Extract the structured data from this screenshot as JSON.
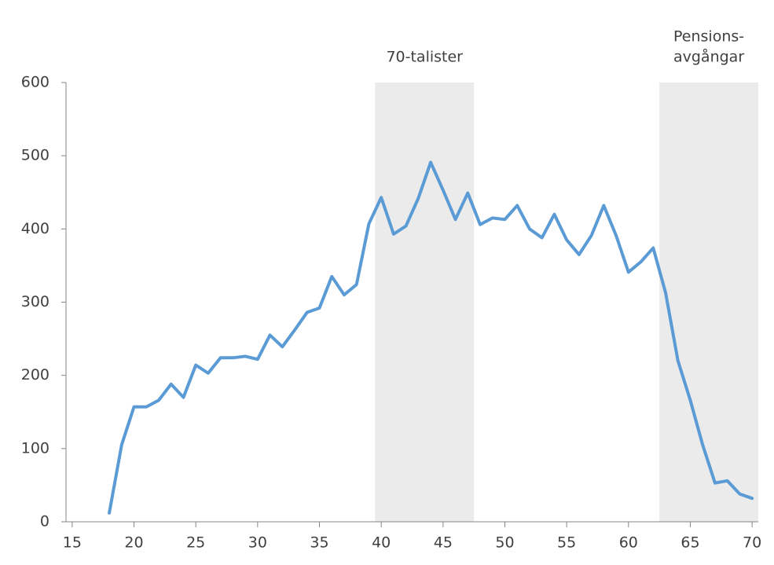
{
  "chart_data": {
    "type": "line",
    "x": [
      18,
      19,
      20,
      21,
      22,
      23,
      24,
      25,
      26,
      27,
      28,
      29,
      30,
      31,
      32,
      33,
      34,
      35,
      36,
      37,
      38,
      39,
      40,
      41,
      42,
      43,
      44,
      45,
      46,
      47,
      48,
      49,
      50,
      51,
      52,
      53,
      54,
      55,
      56,
      57,
      58,
      59,
      60,
      61,
      62,
      63,
      64,
      65,
      66,
      67,
      68,
      69,
      70
    ],
    "series": [
      {
        "color": "#5b9bd5",
        "values": [
          12,
          105,
          157,
          157,
          166,
          188,
          170,
          214,
          203,
          224,
          224,
          226,
          222,
          255,
          239,
          262,
          286,
          292,
          335,
          310,
          324,
          407,
          443,
          393,
          404,
          442,
          491,
          453,
          413,
          449,
          406,
          415,
          413,
          432,
          400,
          388,
          420,
          385,
          365,
          391,
          432,
          391,
          341,
          355,
          374,
          313,
          220,
          166,
          105,
          53,
          56,
          38,
          32
        ]
      }
    ],
    "xlim": [
      14.5,
      70.5
    ],
    "xticks": [
      15,
      20,
      25,
      30,
      35,
      40,
      45,
      50,
      55,
      60,
      65,
      70
    ],
    "ylim": [
      0,
      600
    ],
    "yticks": [
      0,
      100,
      200,
      300,
      400,
      500,
      600
    ],
    "bands": [
      {
        "label": [
          "70-talister"
        ],
        "range": [
          39.5,
          47.5
        ],
        "color": "#ebebeb"
      },
      {
        "label": [
          "Pensions-",
          "avgångar"
        ],
        "range": [
          62.5,
          70.5
        ],
        "color": "#ebebeb"
      }
    ]
  }
}
